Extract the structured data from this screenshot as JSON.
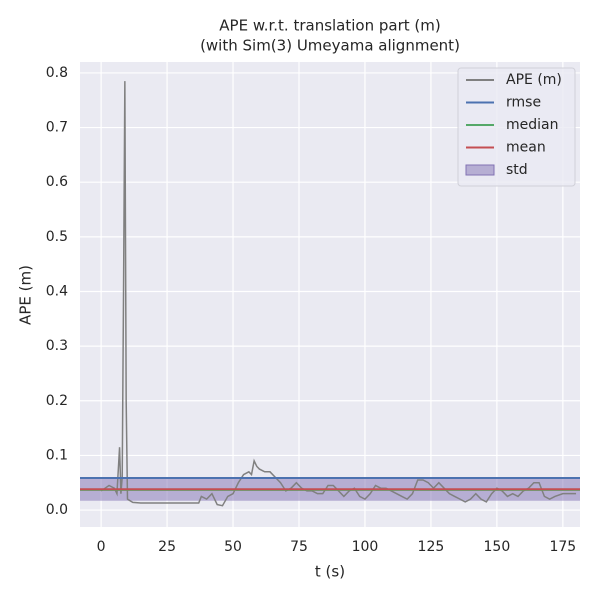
{
  "chart_data": {
    "type": "line",
    "title": [
      "APE w.r.t. translation part (m)",
      "(with Sim(3) Umeyama alignment)"
    ],
    "x_label": "t (s)",
    "y_label": "APE (m)",
    "xlim": [
      -8,
      181.5
    ],
    "ylim": [
      -0.031,
      0.82
    ],
    "xticks": [
      0,
      25,
      50,
      75,
      100,
      125,
      150,
      175
    ],
    "yticks": [
      {
        "value": 0,
        "label": "0.0"
      },
      0.1,
      0.2,
      0.3,
      0.4,
      0.5,
      0.6,
      0.7,
      0.8
    ],
    "grid": true,
    "legend": "upper right",
    "series": [
      {
        "name": "APE (m)",
        "color": "#808080",
        "x": [
          0,
          3,
          5,
          6,
          7,
          7.5,
          8,
          8.5,
          9,
          9.5,
          10,
          12,
          15,
          20,
          30,
          37,
          38,
          40,
          42,
          44,
          46,
          48,
          50,
          52,
          54,
          56,
          57,
          58,
          59,
          60,
          62,
          64,
          66,
          68,
          70,
          72,
          74,
          76,
          78,
          80,
          82,
          84,
          86,
          88,
          90,
          92,
          94,
          96,
          98,
          100,
          102,
          104,
          106,
          108,
          110,
          112,
          114,
          116,
          118,
          120,
          122,
          124,
          126,
          128,
          130,
          132,
          134,
          136,
          138,
          140,
          142,
          144,
          146,
          148,
          150,
          152,
          154,
          156,
          158,
          160,
          162,
          164,
          166,
          168,
          170,
          172,
          175,
          178,
          180
        ],
        "values": [
          0.035,
          0.045,
          0.04,
          0.03,
          0.115,
          0.03,
          0.06,
          0.4,
          0.785,
          0.2,
          0.02,
          0.014,
          0.013,
          0.013,
          0.013,
          0.013,
          0.025,
          0.02,
          0.03,
          0.01,
          0.008,
          0.025,
          0.03,
          0.05,
          0.065,
          0.07,
          0.065,
          0.09,
          0.08,
          0.075,
          0.07,
          0.07,
          0.06,
          0.05,
          0.035,
          0.04,
          0.05,
          0.04,
          0.035,
          0.035,
          0.03,
          0.03,
          0.045,
          0.045,
          0.035,
          0.025,
          0.035,
          0.04,
          0.025,
          0.02,
          0.03,
          0.045,
          0.04,
          0.04,
          0.035,
          0.03,
          0.025,
          0.02,
          0.03,
          0.055,
          0.055,
          0.05,
          0.04,
          0.05,
          0.04,
          0.03,
          0.025,
          0.02,
          0.015,
          0.02,
          0.03,
          0.02,
          0.015,
          0.03,
          0.04,
          0.035,
          0.025,
          0.03,
          0.025,
          0.035,
          0.04,
          0.05,
          0.05,
          0.025,
          0.02,
          0.025,
          0.03,
          0.03,
          0.03
        ]
      }
    ],
    "stats": [
      {
        "name": "rmse",
        "color": "#4c72b0",
        "value": 0.0586
      },
      {
        "name": "median",
        "color": "#55a868",
        "value": 0.037
      },
      {
        "name": "mean",
        "color": "#c44e52",
        "value": 0.038
      },
      {
        "name": "std",
        "color": "#8172b3",
        "value": 0.021
      }
    ]
  }
}
